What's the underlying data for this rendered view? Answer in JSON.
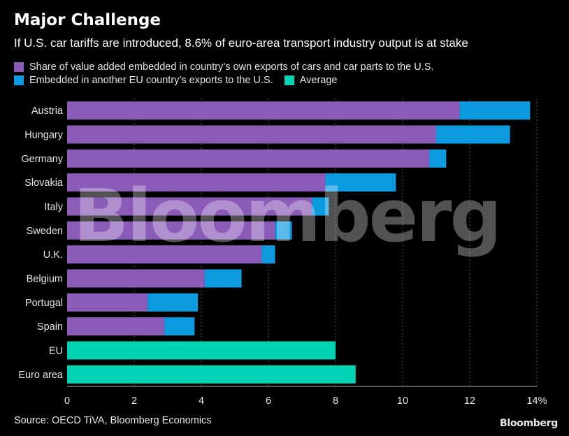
{
  "title": "Major Challenge",
  "subtitle": "If U.S. car tariffs are introduced, 8.6% of euro-area transport industry output is at stake",
  "legend": [
    {
      "label": "Share of value added embedded in country’s own exports of cars and car parts to the U.S.",
      "color": "#8b5bb8"
    },
    {
      "label": "Embedded in another EU country’s exports to the U.S.",
      "color": "#0d9be0"
    },
    {
      "label": "Average",
      "color": "#00d4b4"
    }
  ],
  "watermark": "Bloomberg",
  "source": "Source: OECD TiVA, Bloomberg Economics",
  "brand": "Bloomberg",
  "colors": {
    "background": "#000000",
    "own_exports": "#8b5bb8",
    "other_eu": "#0d9be0",
    "average": "#00d4b4",
    "grid": "#555555",
    "text": "#e6e6e6"
  },
  "chart_data": {
    "type": "bar",
    "orientation": "horizontal",
    "stacked": true,
    "categories": [
      "Austria",
      "Hungary",
      "Germany",
      "Slovakia",
      "Italy",
      "Sweden",
      "U.K.",
      "Belgium",
      "Portugal",
      "Spain",
      "EU",
      "Euro area"
    ],
    "series": [
      {
        "name": "Share of value added embedded in country’s own exports of cars and car parts to the U.S.",
        "values": [
          11.7,
          11.0,
          10.8,
          7.7,
          7.3,
          6.2,
          5.8,
          4.1,
          2.4,
          2.9,
          null,
          null
        ]
      },
      {
        "name": "Embedded in another EU country’s exports to the U.S.",
        "values": [
          2.1,
          2.2,
          0.5,
          2.1,
          0.5,
          0.5,
          0.4,
          1.1,
          1.5,
          0.9,
          null,
          null
        ]
      },
      {
        "name": "Average",
        "values": [
          null,
          null,
          null,
          null,
          null,
          null,
          null,
          null,
          null,
          null,
          8.0,
          8.6
        ]
      }
    ],
    "xlim": [
      0,
      14
    ],
    "xticks": [
      "0",
      "2",
      "4",
      "6",
      "8",
      "10",
      "12",
      "14%"
    ],
    "xtick_values": [
      0,
      2,
      4,
      6,
      8,
      10,
      12,
      14
    ],
    "grid": "vertical dashed",
    "legend_position": "top"
  }
}
